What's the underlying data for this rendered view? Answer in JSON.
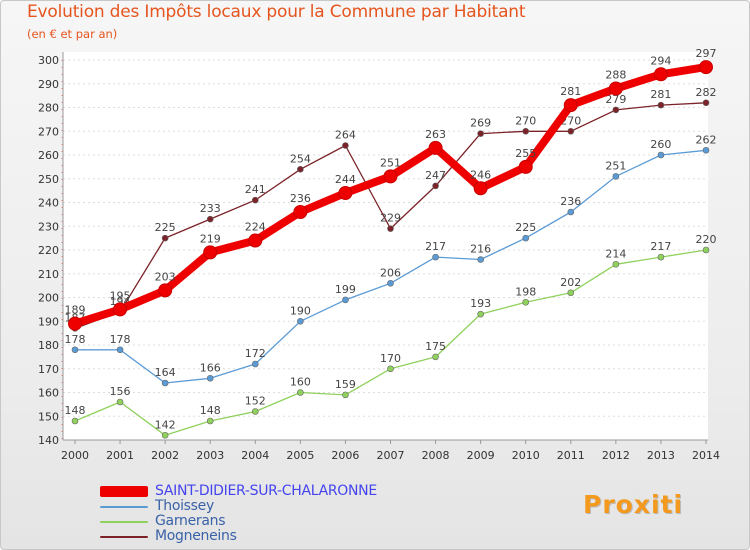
{
  "header": {
    "title": "Evolution des Impôts locaux pour la Commune par Habitant",
    "subtitle": "(en € et par an)"
  },
  "brand": {
    "logo_text": "Proxiti"
  },
  "chart_data": {
    "type": "line",
    "title": "Evolution des Impôts locaux pour la Commune par Habitant",
    "subtitle": "(en € et par an)",
    "xlabel": "",
    "ylabel": "",
    "x": [
      "2000",
      "2001",
      "2002",
      "2003",
      "2004",
      "2005",
      "2006",
      "2007",
      "2008",
      "2009",
      "2010",
      "2011",
      "2012",
      "2013",
      "2014"
    ],
    "ylim": [
      140,
      300
    ],
    "yticks": [
      140,
      150,
      160,
      170,
      180,
      190,
      200,
      210,
      220,
      230,
      240,
      250,
      260,
      270,
      280,
      290,
      300
    ],
    "grid": true,
    "legend_position": "bottom-left",
    "series": [
      {
        "name": "Mogneneins",
        "color": "#7b2328",
        "values": [
          187,
          194,
          225,
          233,
          241,
          254,
          264,
          229,
          247,
          269,
          270,
          270,
          279,
          281,
          282
        ]
      },
      {
        "name": "Garnerans",
        "color": "#8fd15c",
        "values": [
          148,
          156,
          142,
          148,
          152,
          160,
          159,
          170,
          175,
          193,
          198,
          202,
          214,
          217,
          220
        ]
      },
      {
        "name": "Thoissey",
        "color": "#5b9bd5",
        "values": [
          178,
          178,
          164,
          166,
          172,
          190,
          199,
          206,
          217,
          216,
          225,
          236,
          251,
          260,
          262
        ]
      },
      {
        "name": "SAINT-DIDIER-SUR-CHALARONNE",
        "color": "#ee0000",
        "values": [
          189,
          195,
          203,
          219,
          224,
          236,
          244,
          251,
          263,
          246,
          255,
          281,
          288,
          294,
          297
        ]
      }
    ],
    "legend": [
      "SAINT-DIDIER-SUR-CHALARONNE",
      "Thoissey",
      "Garnerans",
      "Mogneneins"
    ]
  }
}
